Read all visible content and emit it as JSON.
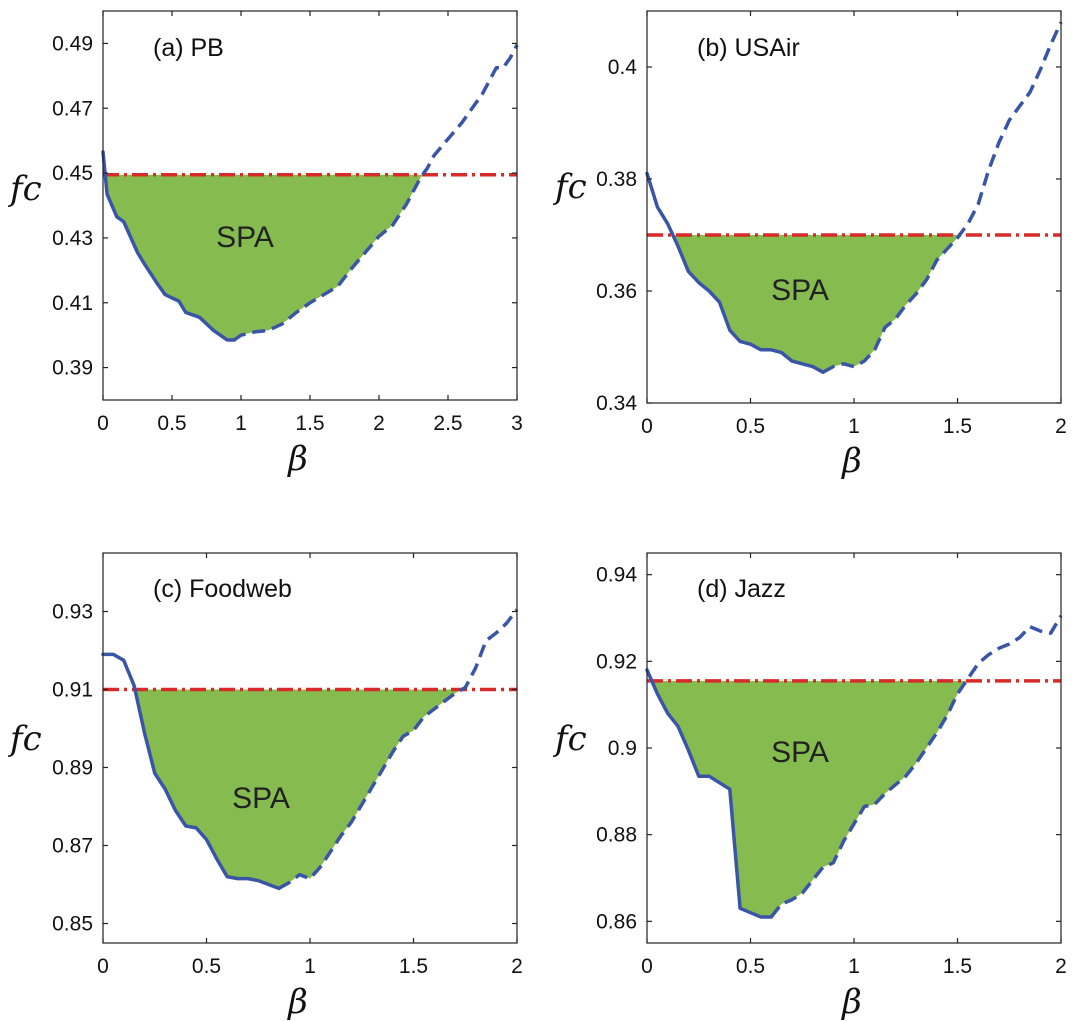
{
  "colors": {
    "curve": "#3a55a6",
    "threshold": "#d92a2a",
    "region": "#86bc4f",
    "axes": "#222222"
  },
  "chart_data": [
    {
      "type": "line",
      "title": "(a) PB",
      "xlabel": "β",
      "ylabel": "fc",
      "xlim": [
        0,
        3
      ],
      "ylim": [
        0.38,
        0.5
      ],
      "xticks": [
        0,
        0.5,
        1,
        1.5,
        2,
        2.5,
        3
      ],
      "xtick_labels": [
        "0",
        "0.5",
        "1",
        "1.5",
        "2",
        "2.5",
        "3"
      ],
      "yticks": [
        0.39,
        0.41,
        0.43,
        0.45,
        0.47,
        0.49
      ],
      "ytick_labels": [
        "0.39",
        "0.41",
        "0.43",
        "0.45",
        "0.47",
        "0.49"
      ],
      "threshold": 0.4495,
      "region_label": "SPA",
      "solid_until": 0.95,
      "x": [
        0,
        0.03,
        0.1,
        0.15,
        0.25,
        0.3,
        0.4,
        0.45,
        0.5,
        0.55,
        0.6,
        0.7,
        0.8,
        0.9,
        0.95,
        1.0,
        1.1,
        1.2,
        1.3,
        1.4,
        1.5,
        1.6,
        1.7,
        1.8,
        1.9,
        2.0,
        2.1,
        2.2,
        2.3,
        2.35,
        2.4,
        2.5,
        2.6,
        2.7,
        2.75,
        2.8,
        2.85,
        2.9,
        2.95,
        3.0
      ],
      "y": [
        0.4565,
        0.4435,
        0.4365,
        0.435,
        0.4255,
        0.422,
        0.4155,
        0.4125,
        0.4115,
        0.4105,
        0.407,
        0.4055,
        0.4015,
        0.3985,
        0.3985,
        0.4,
        0.401,
        0.4015,
        0.4035,
        0.407,
        0.41,
        0.4125,
        0.415,
        0.4205,
        0.4255,
        0.4305,
        0.434,
        0.4405,
        0.4485,
        0.4515,
        0.4555,
        0.4605,
        0.4655,
        0.4715,
        0.4745,
        0.4785,
        0.4825,
        0.4825,
        0.4855,
        0.4895
      ]
    },
    {
      "type": "line",
      "title": "(b) USAir",
      "xlabel": "β",
      "ylabel": "fc",
      "xlim": [
        0,
        2
      ],
      "ylim": [
        0.34,
        0.41
      ],
      "xticks": [
        0,
        0.5,
        1,
        1.5,
        2
      ],
      "xtick_labels": [
        "0",
        "0.5",
        "1",
        "1.5",
        "2"
      ],
      "yticks": [
        0.34,
        0.36,
        0.38,
        0.4
      ],
      "ytick_labels": [
        "0.34",
        "0.36",
        "0.38",
        "0.4"
      ],
      "threshold": 0.37,
      "region_label": "SPA",
      "solid_until": 0.85,
      "x": [
        0,
        0.05,
        0.1,
        0.15,
        0.2,
        0.25,
        0.3,
        0.35,
        0.4,
        0.45,
        0.5,
        0.55,
        0.6,
        0.65,
        0.7,
        0.75,
        0.8,
        0.85,
        0.9,
        0.95,
        1.0,
        1.05,
        1.1,
        1.15,
        1.2,
        1.25,
        1.3,
        1.35,
        1.4,
        1.45,
        1.5,
        1.55,
        1.6,
        1.65,
        1.7,
        1.75,
        1.8,
        1.85,
        1.9,
        1.95,
        2.0
      ],
      "y": [
        0.381,
        0.375,
        0.372,
        0.368,
        0.3635,
        0.3615,
        0.36,
        0.358,
        0.353,
        0.351,
        0.3505,
        0.3495,
        0.3495,
        0.349,
        0.3475,
        0.347,
        0.3465,
        0.3455,
        0.3465,
        0.347,
        0.3465,
        0.3475,
        0.3495,
        0.3535,
        0.355,
        0.3575,
        0.3595,
        0.362,
        0.3655,
        0.3675,
        0.3695,
        0.372,
        0.3755,
        0.3815,
        0.3865,
        0.3905,
        0.393,
        0.3955,
        0.3995,
        0.404,
        0.408
      ]
    },
    {
      "type": "line",
      "title": "(c) Foodweb",
      "xlabel": "β",
      "ylabel": "fc",
      "xlim": [
        0,
        2
      ],
      "ylim": [
        0.845,
        0.945
      ],
      "xticks": [
        0,
        0.5,
        1,
        1.5,
        2
      ],
      "xtick_labels": [
        "0",
        "0.5",
        "1",
        "1.5",
        "2"
      ],
      "yticks": [
        0.85,
        0.87,
        0.89,
        0.91,
        0.93
      ],
      "ytick_labels": [
        "0.85",
        "0.87",
        "0.89",
        "0.91",
        "0.93"
      ],
      "threshold": 0.91,
      "region_label": "SPA",
      "solid_until": 0.85,
      "x": [
        0,
        0.05,
        0.1,
        0.15,
        0.2,
        0.25,
        0.3,
        0.35,
        0.4,
        0.45,
        0.5,
        0.55,
        0.6,
        0.65,
        0.7,
        0.75,
        0.8,
        0.85,
        0.9,
        0.95,
        1.0,
        1.05,
        1.1,
        1.15,
        1.2,
        1.25,
        1.3,
        1.35,
        1.4,
        1.45,
        1.5,
        1.55,
        1.6,
        1.65,
        1.7,
        1.75,
        1.8,
        1.85,
        1.9,
        1.95,
        2.0
      ],
      "y": [
        0.919,
        0.919,
        0.9175,
        0.911,
        0.899,
        0.8885,
        0.8845,
        0.879,
        0.875,
        0.8745,
        0.8715,
        0.8665,
        0.862,
        0.8615,
        0.8615,
        0.861,
        0.86,
        0.859,
        0.8605,
        0.8625,
        0.8615,
        0.8645,
        0.8685,
        0.8725,
        0.876,
        0.8805,
        0.885,
        0.8895,
        0.894,
        0.898,
        0.8995,
        0.903,
        0.905,
        0.907,
        0.909,
        0.9105,
        0.9155,
        0.9225,
        0.9245,
        0.927,
        0.9305
      ]
    },
    {
      "type": "line",
      "title": "(d) Jazz",
      "xlabel": "β",
      "ylabel": "fc",
      "xlim": [
        0,
        2
      ],
      "ylim": [
        0.855,
        0.945
      ],
      "xticks": [
        0,
        0.5,
        1,
        1.5,
        2
      ],
      "xtick_labels": [
        "0",
        "0.5",
        "1",
        "1.5",
        "2"
      ],
      "yticks": [
        0.86,
        0.88,
        0.9,
        0.92,
        0.94
      ],
      "ytick_labels": [
        "0.86",
        "0.88",
        "0.9",
        "0.92",
        "0.94"
      ],
      "threshold": 0.9155,
      "region_label": "SPA",
      "solid_until": 0.6,
      "x": [
        0,
        0.05,
        0.1,
        0.15,
        0.2,
        0.25,
        0.3,
        0.4,
        0.45,
        0.5,
        0.55,
        0.6,
        0.65,
        0.7,
        0.75,
        0.8,
        0.85,
        0.9,
        0.95,
        1.0,
        1.05,
        1.1,
        1.15,
        1.2,
        1.25,
        1.3,
        1.35,
        1.4,
        1.45,
        1.5,
        1.55,
        1.6,
        1.65,
        1.7,
        1.75,
        1.8,
        1.85,
        1.9,
        1.95,
        2.0
      ],
      "y": [
        0.918,
        0.9125,
        0.908,
        0.905,
        0.8995,
        0.8935,
        0.8935,
        0.8905,
        0.863,
        0.862,
        0.861,
        0.861,
        0.864,
        0.865,
        0.8665,
        0.8695,
        0.8725,
        0.8735,
        0.8785,
        0.8825,
        0.8865,
        0.887,
        0.8895,
        0.8915,
        0.8935,
        0.8965,
        0.9,
        0.9035,
        0.9075,
        0.9125,
        0.916,
        0.9195,
        0.9215,
        0.923,
        0.924,
        0.9255,
        0.928,
        0.927,
        0.9265,
        0.9305
      ]
    }
  ]
}
